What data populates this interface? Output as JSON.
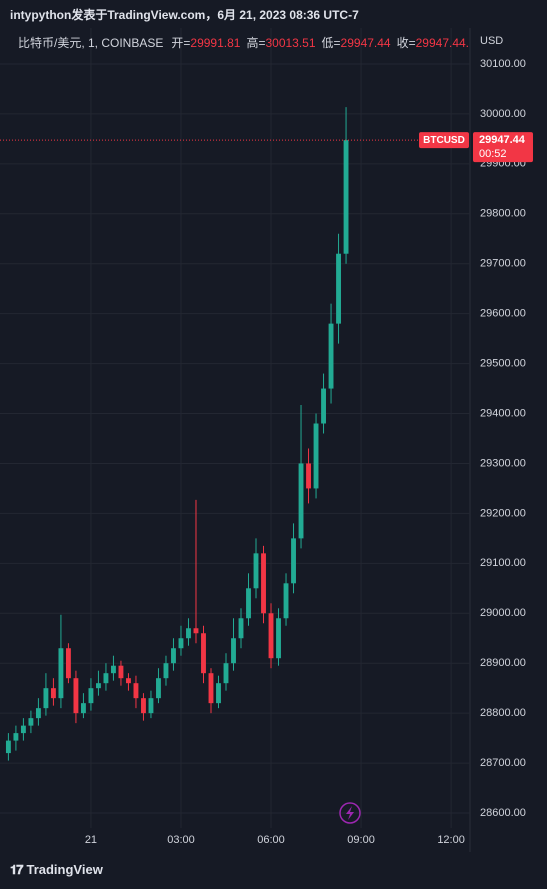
{
  "header": {
    "attribution": "intypython发表于TradingView.com，6月 21, 2023 08:36 UTC-7"
  },
  "legend": {
    "symbol": "比特币/美元, 1, COINBASE",
    "ohlc": [
      {
        "label": "开=",
        "value": "29991.81"
      },
      {
        "label": "高=",
        "value": "30013.51"
      },
      {
        "label": "低=",
        "value": "29947.44"
      },
      {
        "label": "收=",
        "value": "29947.44..."
      }
    ]
  },
  "price_tag": {
    "symbol": "BTCUSD",
    "price": "29947.44",
    "countdown": "00:52"
  },
  "footer": {
    "brand": "TradingView"
  },
  "chart_data": {
    "type": "candlestick",
    "currency": "USD",
    "up_color": "#22ab94",
    "down_color": "#f23645",
    "grid": true,
    "x": [
      -2.75,
      -2.5,
      -2.25,
      -2,
      -1.75,
      -1.5,
      -1.25,
      -1,
      -0.75,
      -0.5,
      -0.25,
      0,
      0.25,
      0.5,
      0.75,
      1,
      1.25,
      1.5,
      1.75,
      2,
      2.25,
      2.5,
      2.75,
      3,
      3.25,
      3.5,
      3.75,
      4,
      4.25,
      4.5,
      4.75,
      5,
      5.25,
      5.5,
      5.75,
      6,
      6.25,
      6.5,
      6.75,
      7,
      7.25,
      7.5,
      7.75,
      8,
      8.25,
      8.5
    ],
    "open": [
      28720,
      28745,
      28760,
      28775,
      28790,
      28810,
      28850,
      28830,
      28930,
      28870,
      28800,
      28820,
      28850,
      28860,
      28880,
      28895,
      28870,
      28860,
      28830,
      28800,
      28830,
      28870,
      28900,
      28930,
      28950,
      28970,
      28960,
      28880,
      28820,
      28860,
      28900,
      28950,
      28990,
      29050,
      29120,
      29000,
      28910,
      28990,
      29060,
      29150,
      29300,
      29250,
      29380,
      29450,
      29580,
      29720
    ],
    "high": [
      28760,
      28775,
      28790,
      28805,
      28830,
      28880,
      28870,
      28997,
      28940,
      28885,
      28840,
      28870,
      28885,
      28900,
      28915,
      28905,
      28880,
      28875,
      28840,
      28845,
      28890,
      28915,
      28950,
      28975,
      28990,
      29227,
      28975,
      28890,
      28875,
      28920,
      28990,
      29010,
      29080,
      29150,
      29135,
      29020,
      29010,
      29080,
      29180,
      29417,
      29330,
      29400,
      29480,
      29620,
      29760,
      30013.51
    ],
    "low": [
      28705,
      28725,
      28745,
      28760,
      28775,
      28795,
      28815,
      28810,
      28860,
      28780,
      28790,
      28805,
      28835,
      28845,
      28865,
      28855,
      28845,
      28810,
      28785,
      28790,
      28820,
      28855,
      28885,
      28915,
      28935,
      28940,
      28860,
      28800,
      28810,
      28845,
      28885,
      28930,
      28975,
      29030,
      28980,
      28890,
      28895,
      28975,
      29040,
      29130,
      29220,
      29230,
      29360,
      29420,
      29540,
      29700
    ],
    "close": [
      28745,
      28760,
      28775,
      28790,
      28810,
      28850,
      28830,
      28930,
      28870,
      28800,
      28820,
      28850,
      28860,
      28880,
      28895,
      28870,
      28860,
      28830,
      28800,
      28830,
      28870,
      28900,
      28930,
      28950,
      28970,
      28960,
      28880,
      28820,
      28860,
      28900,
      28950,
      28990,
      29050,
      29120,
      29000,
      28910,
      28990,
      29060,
      29150,
      29300,
      29250,
      29380,
      29450,
      29580,
      29720,
      29947.44
    ],
    "xlim": [
      -3.03,
      12.63
    ],
    "xticks": [
      {
        "value": 0,
        "label": "21"
      },
      {
        "value": 3,
        "label": "03:00"
      },
      {
        "value": 6,
        "label": "06:00"
      },
      {
        "value": 9,
        "label": "09:00"
      },
      {
        "value": 12,
        "label": "12:00"
      }
    ],
    "ylim": [
      28570,
      30172
    ],
    "yticks": [
      {
        "value": 28600,
        "label": "28600.00"
      },
      {
        "value": 28700,
        "label": "28700.00"
      },
      {
        "value": 28800,
        "label": "28800.00"
      },
      {
        "value": 28900,
        "label": "28900.00"
      },
      {
        "value": 29000,
        "label": "29000.00"
      },
      {
        "value": 29100,
        "label": "29100.00"
      },
      {
        "value": 29200,
        "label": "29200.00"
      },
      {
        "value": 29300,
        "label": "29300.00"
      },
      {
        "value": 29400,
        "label": "29400.00"
      },
      {
        "value": 29500,
        "label": "29500.00"
      },
      {
        "value": 29600,
        "label": "29600.00"
      },
      {
        "value": 29700,
        "label": "29700.00"
      },
      {
        "value": 29800,
        "label": "29800.00"
      },
      {
        "value": 29900,
        "label": "29900.00"
      },
      {
        "value": 30000,
        "label": "30000.00"
      },
      {
        "value": 30100,
        "label": "30100.00"
      }
    ]
  }
}
